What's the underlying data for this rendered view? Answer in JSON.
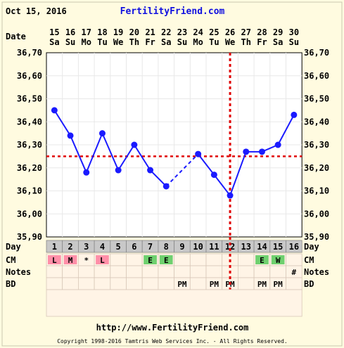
{
  "header": {
    "date": "Oct 15, 2016",
    "site": "FertilityFriend.com"
  },
  "footer": {
    "url": "http://www.FertilityFriend.com",
    "copyright": "Copyright 1998-2016 Tamtris Web Services Inc. - All Rights Reserved."
  },
  "row_labels": {
    "date": "Date",
    "day": "Day",
    "cm": "CM",
    "notes": "Notes",
    "bd": "BD"
  },
  "chart_data": {
    "type": "line",
    "title": "",
    "xlabel": "Date",
    "ylabel": "",
    "ylim": [
      35.9,
      36.7
    ],
    "y_ticks": [
      "36,70",
      "36,60",
      "36,50",
      "36,40",
      "36,30",
      "36,20",
      "36,10",
      "36,00",
      "35,90"
    ],
    "x_dates": [
      "15",
      "16",
      "17",
      "18",
      "19",
      "20",
      "21",
      "22",
      "23",
      "24",
      "25",
      "26",
      "27",
      "28",
      "29",
      "30"
    ],
    "x_weekdays": [
      "Sa",
      "Su",
      "Mo",
      "Tu",
      "We",
      "Th",
      "Fr",
      "Sa",
      "Su",
      "Mo",
      "Tu",
      "We",
      "Th",
      "Fr",
      "Sa",
      "Su"
    ],
    "cycle_days": [
      "1",
      "2",
      "3",
      "4",
      "5",
      "6",
      "7",
      "8",
      "9",
      "10",
      "11",
      "12",
      "13",
      "14",
      "15",
      "16"
    ],
    "temperatures": [
      36.45,
      36.34,
      36.18,
      36.35,
      36.19,
      36.3,
      36.19,
      36.12,
      null,
      36.26,
      36.17,
      36.08,
      36.27,
      36.27,
      36.3,
      36.43
    ],
    "dashed_segments": [
      [
        7,
        9
      ]
    ],
    "coverline": 36.25,
    "ovulation_day_index": 11,
    "cm": [
      "L",
      "M",
      "*",
      "L",
      "",
      "",
      "E",
      "E",
      "",
      "",
      "",
      "",
      "",
      "E",
      "W",
      ""
    ],
    "notes": [
      "",
      "",
      "",
      "",
      "",
      "",
      "",
      "",
      "",
      "",
      "",
      "",
      "",
      "",
      "",
      "#"
    ],
    "bd": [
      "",
      "",
      "",
      "",
      "",
      "",
      "",
      "",
      "PM",
      "",
      "PM",
      "PM",
      "",
      "PM",
      "PM",
      ""
    ],
    "colors": {
      "line": "#1a1aff",
      "coverline": "#e00000",
      "cm_L": "#ff8fa8",
      "cm_M": "#ff8fa8",
      "cm_E": "#6fd06f",
      "cm_W": "#6fd06f",
      "cell_bg": "#fff4e6",
      "day_row_bg": "#c8c8c8",
      "plot_bg": "#ffffff",
      "grid": "#e8e8e8"
    }
  }
}
